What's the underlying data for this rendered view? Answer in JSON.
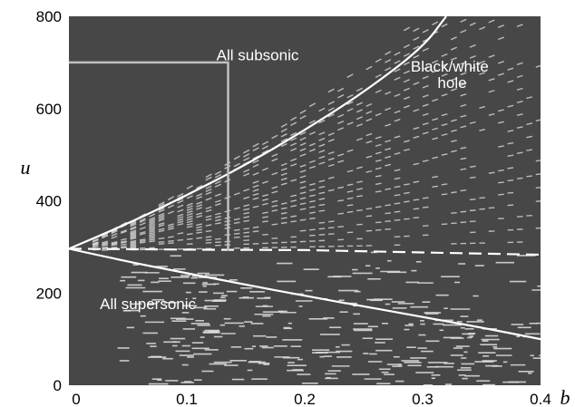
{
  "chart_data": {
    "type": "line",
    "title": "",
    "xlabel": "b",
    "ylabel": "u",
    "xlim": [
      0,
      0.4
    ],
    "ylim": [
      0,
      800
    ],
    "x_ticks": [
      "0",
      "0.1",
      "0.2",
      "0.3",
      "0.4"
    ],
    "y_ticks": [
      "0",
      "200",
      "400",
      "600",
      "800"
    ],
    "grid": false,
    "background_color": "#474747",
    "line_color": "#ffffff",
    "inset_color": "#c0c0c0",
    "annotations": [
      {
        "text": "All subsonic",
        "x": 0.16,
        "y": 705
      },
      {
        "text": "Black/white",
        "x": 0.323,
        "y": 680
      },
      {
        "text": "hole",
        "x": 0.325,
        "y": 645
      },
      {
        "text": "All supersonic",
        "x": 0.067,
        "y": 165
      }
    ],
    "series": [
      {
        "style": "solid",
        "x": [
          0,
          0.05,
          0.1,
          0.15,
          0.2,
          0.25,
          0.3,
          0.32
        ],
        "y": [
          296,
          350,
          412,
          478,
          553,
          635,
          732,
          800
        ]
      },
      {
        "style": "solid",
        "x": [
          0,
          0.05,
          0.1,
          0.15,
          0.2,
          0.25,
          0.3,
          0.35,
          0.4
        ],
        "y": [
          296,
          268,
          243,
          218,
          194,
          171,
          148,
          125,
          100
        ]
      },
      {
        "style": "dashed",
        "x": [
          0,
          0.1,
          0.2,
          0.3,
          0.4
        ],
        "y": [
          296,
          294,
          293,
          288,
          283
        ]
      },
      {
        "style": "inset",
        "x": [
          0,
          0.135,
          0.135
        ],
        "y": [
          700,
          700,
          292
        ]
      }
    ]
  }
}
